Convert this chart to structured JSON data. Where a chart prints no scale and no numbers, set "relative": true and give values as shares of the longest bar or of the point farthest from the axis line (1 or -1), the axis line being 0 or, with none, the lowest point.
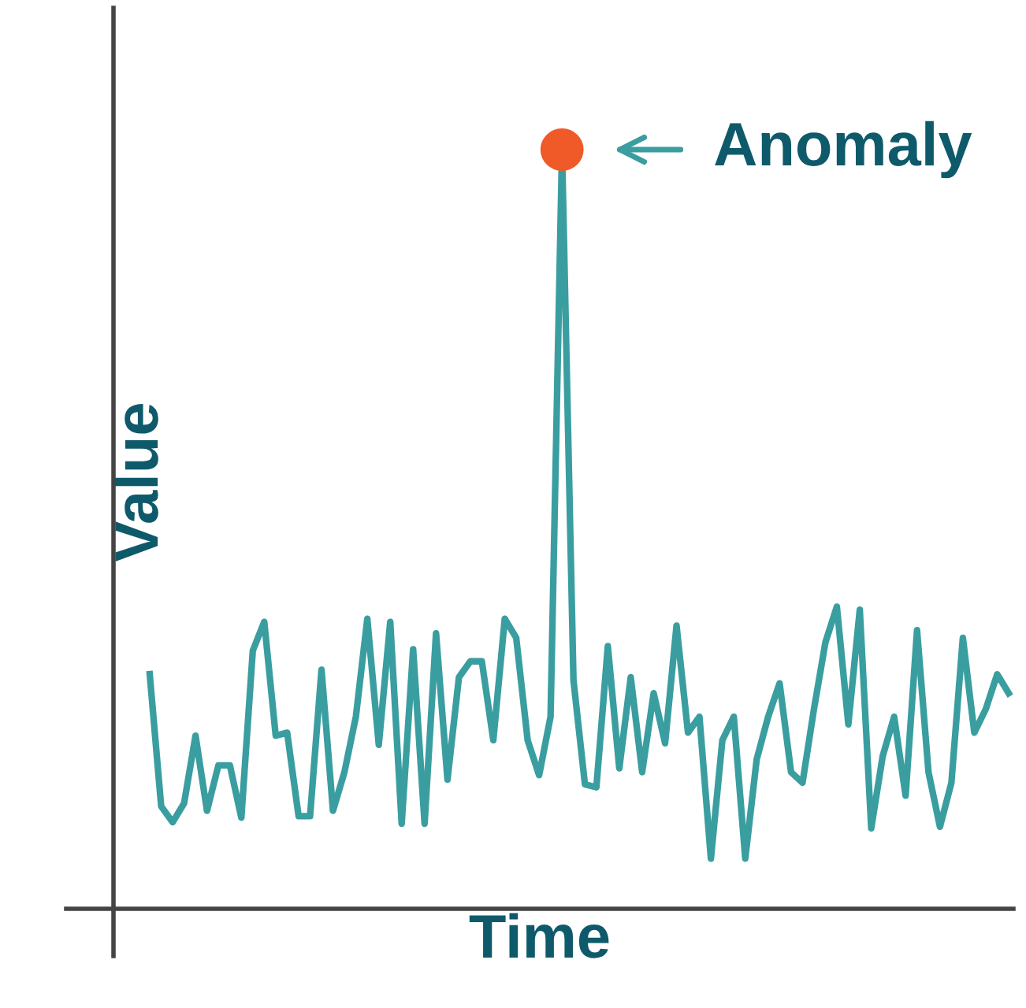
{
  "chart_data": {
    "type": "line",
    "xlabel": "Time",
    "ylabel": "Value",
    "relative": true,
    "categories": [
      null,
      null,
      null,
      null,
      null,
      null,
      null,
      null,
      null,
      null,
      null,
      null,
      null,
      null,
      null,
      null,
      null,
      null,
      null,
      null,
      null,
      null,
      null,
      null,
      null,
      null,
      null,
      null,
      null,
      null,
      null,
      null,
      null,
      null,
      null,
      null,
      null,
      null,
      null,
      null,
      null,
      null,
      null,
      null,
      null,
      null,
      null,
      null,
      null,
      null,
      null,
      null,
      null,
      null,
      null,
      null,
      null,
      null,
      null,
      null,
      null,
      null,
      null,
      null,
      null,
      null,
      null,
      null,
      null,
      null,
      null,
      null,
      null,
      null,
      null,
      null
    ],
    "series": [
      {
        "color": "#3a9ea0",
        "values": [
          0.309,
          0.135,
          0.114,
          0.139,
          0.228,
          0.129,
          0.189,
          0.189,
          0.12,
          0.34,
          0.378,
          0.228,
          0.232,
          0.122,
          0.122,
          0.315,
          0.129,
          0.18,
          0.253,
          0.382,
          0.216,
          0.378,
          0.112,
          0.342,
          0.112,
          0.363,
          0.17,
          0.305,
          0.326,
          0.326,
          0.222,
          0.382,
          0.357,
          0.222,
          0.176,
          0.253,
          1,
          0.301,
          0.164,
          0.16,
          0.346,
          0.185,
          0.305,
          0.18,
          0.284,
          0.218,
          0.373,
          0.232,
          0.253,
          0.066,
          0.222,
          0.253,
          0.066,
          0.197,
          0.253,
          0.297,
          0.18,
          0.166,
          0.263,
          0.351,
          0.398,
          0.243,
          0.394,
          0.106,
          0.201,
          0.253,
          0.149,
          0.367,
          0.18,
          0.108,
          0.166,
          0.357,
          0.232,
          0.263,
          0.309,
          0.284
        ]
      }
    ],
    "annotations": [
      "Anomaly"
    ]
  }
}
